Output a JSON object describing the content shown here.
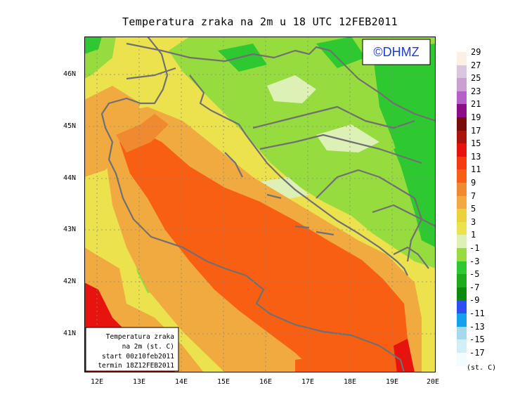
{
  "title": "Temperatura zraka na 2m u 18 UTC 12FEB2011",
  "logo": "©DHMZ",
  "info_box": {
    "line1": "Temperatura zraka",
    "line2": "na 2m (st. C)",
    "line3": "start 00z10feb2011",
    "line4": "termin 18Z12FEB2011"
  },
  "lat_labels": [
    "46N",
    "45N",
    "44N",
    "43N",
    "42N",
    "41N"
  ],
  "lon_labels": [
    "12E",
    "13E",
    "14E",
    "15E",
    "16E",
    "17E",
    "18E",
    "19E",
    "20E"
  ],
  "colorbar": {
    "units": "(st. C)",
    "levels": [
      "29",
      "27",
      "25",
      "23",
      "21",
      "19",
      "17",
      "15",
      "13",
      "11",
      "9",
      "7",
      "5",
      "3",
      "1",
      "-1",
      "-3",
      "-5",
      "-7",
      "-9",
      "-11",
      "-13",
      "-15",
      "-17"
    ],
    "colors": [
      "#fcefe3",
      "#d9c7e0",
      "#cc9fd3",
      "#b55fc8",
      "#8a0f86",
      "#7a0b0b",
      "#a8150d",
      "#e6130e",
      "#f43b12",
      "#f85f12",
      "#f08a30",
      "#f0aa40",
      "#ecd23a",
      "#ece24e",
      "#ddf0b6",
      "#96dc3e",
      "#2ec831",
      "#1fa91c",
      "#0a8b0e",
      "#2d4ef0",
      "#14a0ec",
      "#a8d8ec",
      "#d2eff8",
      "#f2fbfd"
    ]
  }
}
